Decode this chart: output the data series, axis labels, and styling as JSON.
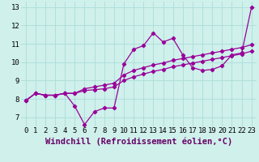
{
  "xlabel": "Windchill (Refroidissement éolien,°C)",
  "background_color": "#cff0eb",
  "line_color": "#990099",
  "xlim": [
    -0.5,
    23.5
  ],
  "ylim": [
    6.5,
    13.3
  ],
  "xticks": [
    0,
    1,
    2,
    3,
    4,
    5,
    6,
    7,
    8,
    9,
    10,
    11,
    12,
    13,
    14,
    15,
    16,
    17,
    18,
    19,
    20,
    21,
    22,
    23
  ],
  "yticks": [
    7,
    8,
    9,
    10,
    11,
    12,
    13
  ],
  "series1": [
    7.9,
    8.3,
    8.2,
    8.2,
    8.3,
    7.6,
    6.6,
    7.3,
    7.5,
    7.5,
    9.9,
    10.7,
    10.9,
    11.6,
    11.1,
    11.3,
    10.4,
    9.7,
    9.55,
    9.6,
    9.8,
    10.4,
    10.5,
    13.0
  ],
  "series2": [
    7.9,
    8.3,
    8.2,
    8.2,
    8.3,
    8.3,
    8.45,
    8.5,
    8.55,
    8.65,
    9.0,
    9.2,
    9.35,
    9.5,
    9.6,
    9.75,
    9.85,
    9.95,
    10.05,
    10.15,
    10.25,
    10.35,
    10.45,
    10.6
  ],
  "series3": [
    7.9,
    8.3,
    8.2,
    8.2,
    8.3,
    8.3,
    8.55,
    8.65,
    8.75,
    8.85,
    9.3,
    9.55,
    9.7,
    9.85,
    9.95,
    10.1,
    10.2,
    10.3,
    10.4,
    10.5,
    10.6,
    10.7,
    10.8,
    10.95
  ],
  "grid_color": "#aaddd8",
  "tick_fontsize": 6.5,
  "xlabel_fontsize": 7.5
}
